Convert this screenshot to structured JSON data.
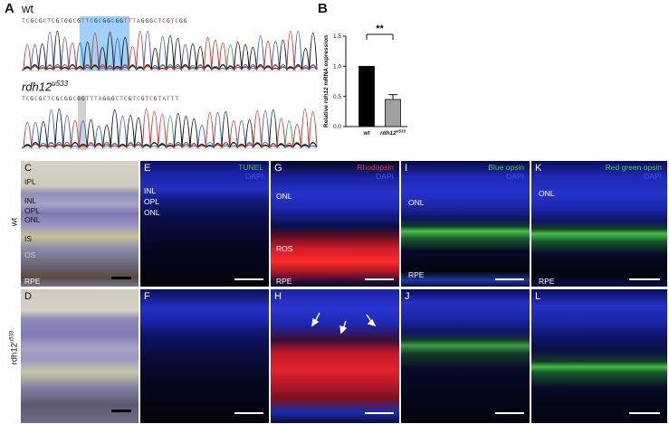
{
  "panel_a": {
    "letter": "A",
    "wt": {
      "label": "wt",
      "sequence": "TCGCGCTCGTGGCGTTCGCGGCGGTTTAGGGCTCGTCGG"
    },
    "mutant": {
      "label_base": "rdh12",
      "label_sup": "u533",
      "sequence": "TCGCGCTCGCGGCGGTTTAGGGCTCGTCGTCGTATTT"
    }
  },
  "panel_b": {
    "letter": "B",
    "significance": "**",
    "chart_data": {
      "type": "bar",
      "categories": [
        "wt",
        "rdh12u533"
      ],
      "category_labels": [
        {
          "base": "wt",
          "sup": ""
        },
        {
          "base": "rdh12",
          "sup": "u533"
        }
      ],
      "values": [
        1.0,
        0.45
      ],
      "error": [
        0.0,
        0.08
      ],
      "colors": [
        "#000000",
        "#a0a0a0"
      ],
      "ylabel_pre": "Relative ",
      "ylabel_gene": "rdh12",
      "ylabel_post": " mRNA expression",
      "ylim": [
        0,
        1.5
      ],
      "yticks": [
        "0.0",
        "0.5",
        "1.0",
        "1.5"
      ],
      "ytick_values": [
        0,
        0.5,
        1.0,
        1.5
      ]
    }
  },
  "row_labels": {
    "wt": "wt",
    "mutant_base": "rdh12",
    "mutant_sup": "u533"
  },
  "panels": {
    "C": {
      "letter": "C",
      "layers": [
        "IPL",
        "INL",
        "OPL",
        "ONL",
        "IS",
        "OS",
        "RPE"
      ]
    },
    "D": {
      "letter": "D"
    },
    "E": {
      "letter": "E",
      "stain1": "TUNEL",
      "stain2": "DAPI",
      "layers": [
        "INL",
        "OPL",
        "ONL"
      ]
    },
    "F": {
      "letter": "F"
    },
    "G": {
      "letter": "G",
      "stain1": "Rhodopsin",
      "stain2": "DAPI",
      "layers": [
        "ONL",
        "ROS",
        "RPE"
      ]
    },
    "H": {
      "letter": "H"
    },
    "I": {
      "letter": "I",
      "stain1": "Blue opsin",
      "stain2": "DAPI",
      "layers": [
        "ONL",
        "RPE"
      ]
    },
    "J": {
      "letter": "J"
    },
    "K": {
      "letter": "K",
      "stain1": "Red green opsin",
      "stain2": "DAPI",
      "layers": [
        "ONL",
        "RPE"
      ]
    },
    "L": {
      "letter": "L"
    }
  },
  "colors": {
    "dapi": "#2a3cf0",
    "tunel": "#3fbf3f",
    "rhodopsin": "#ff2a2a",
    "green_opsin": "#4ccc4c",
    "highlight": "#7ec3f5"
  }
}
